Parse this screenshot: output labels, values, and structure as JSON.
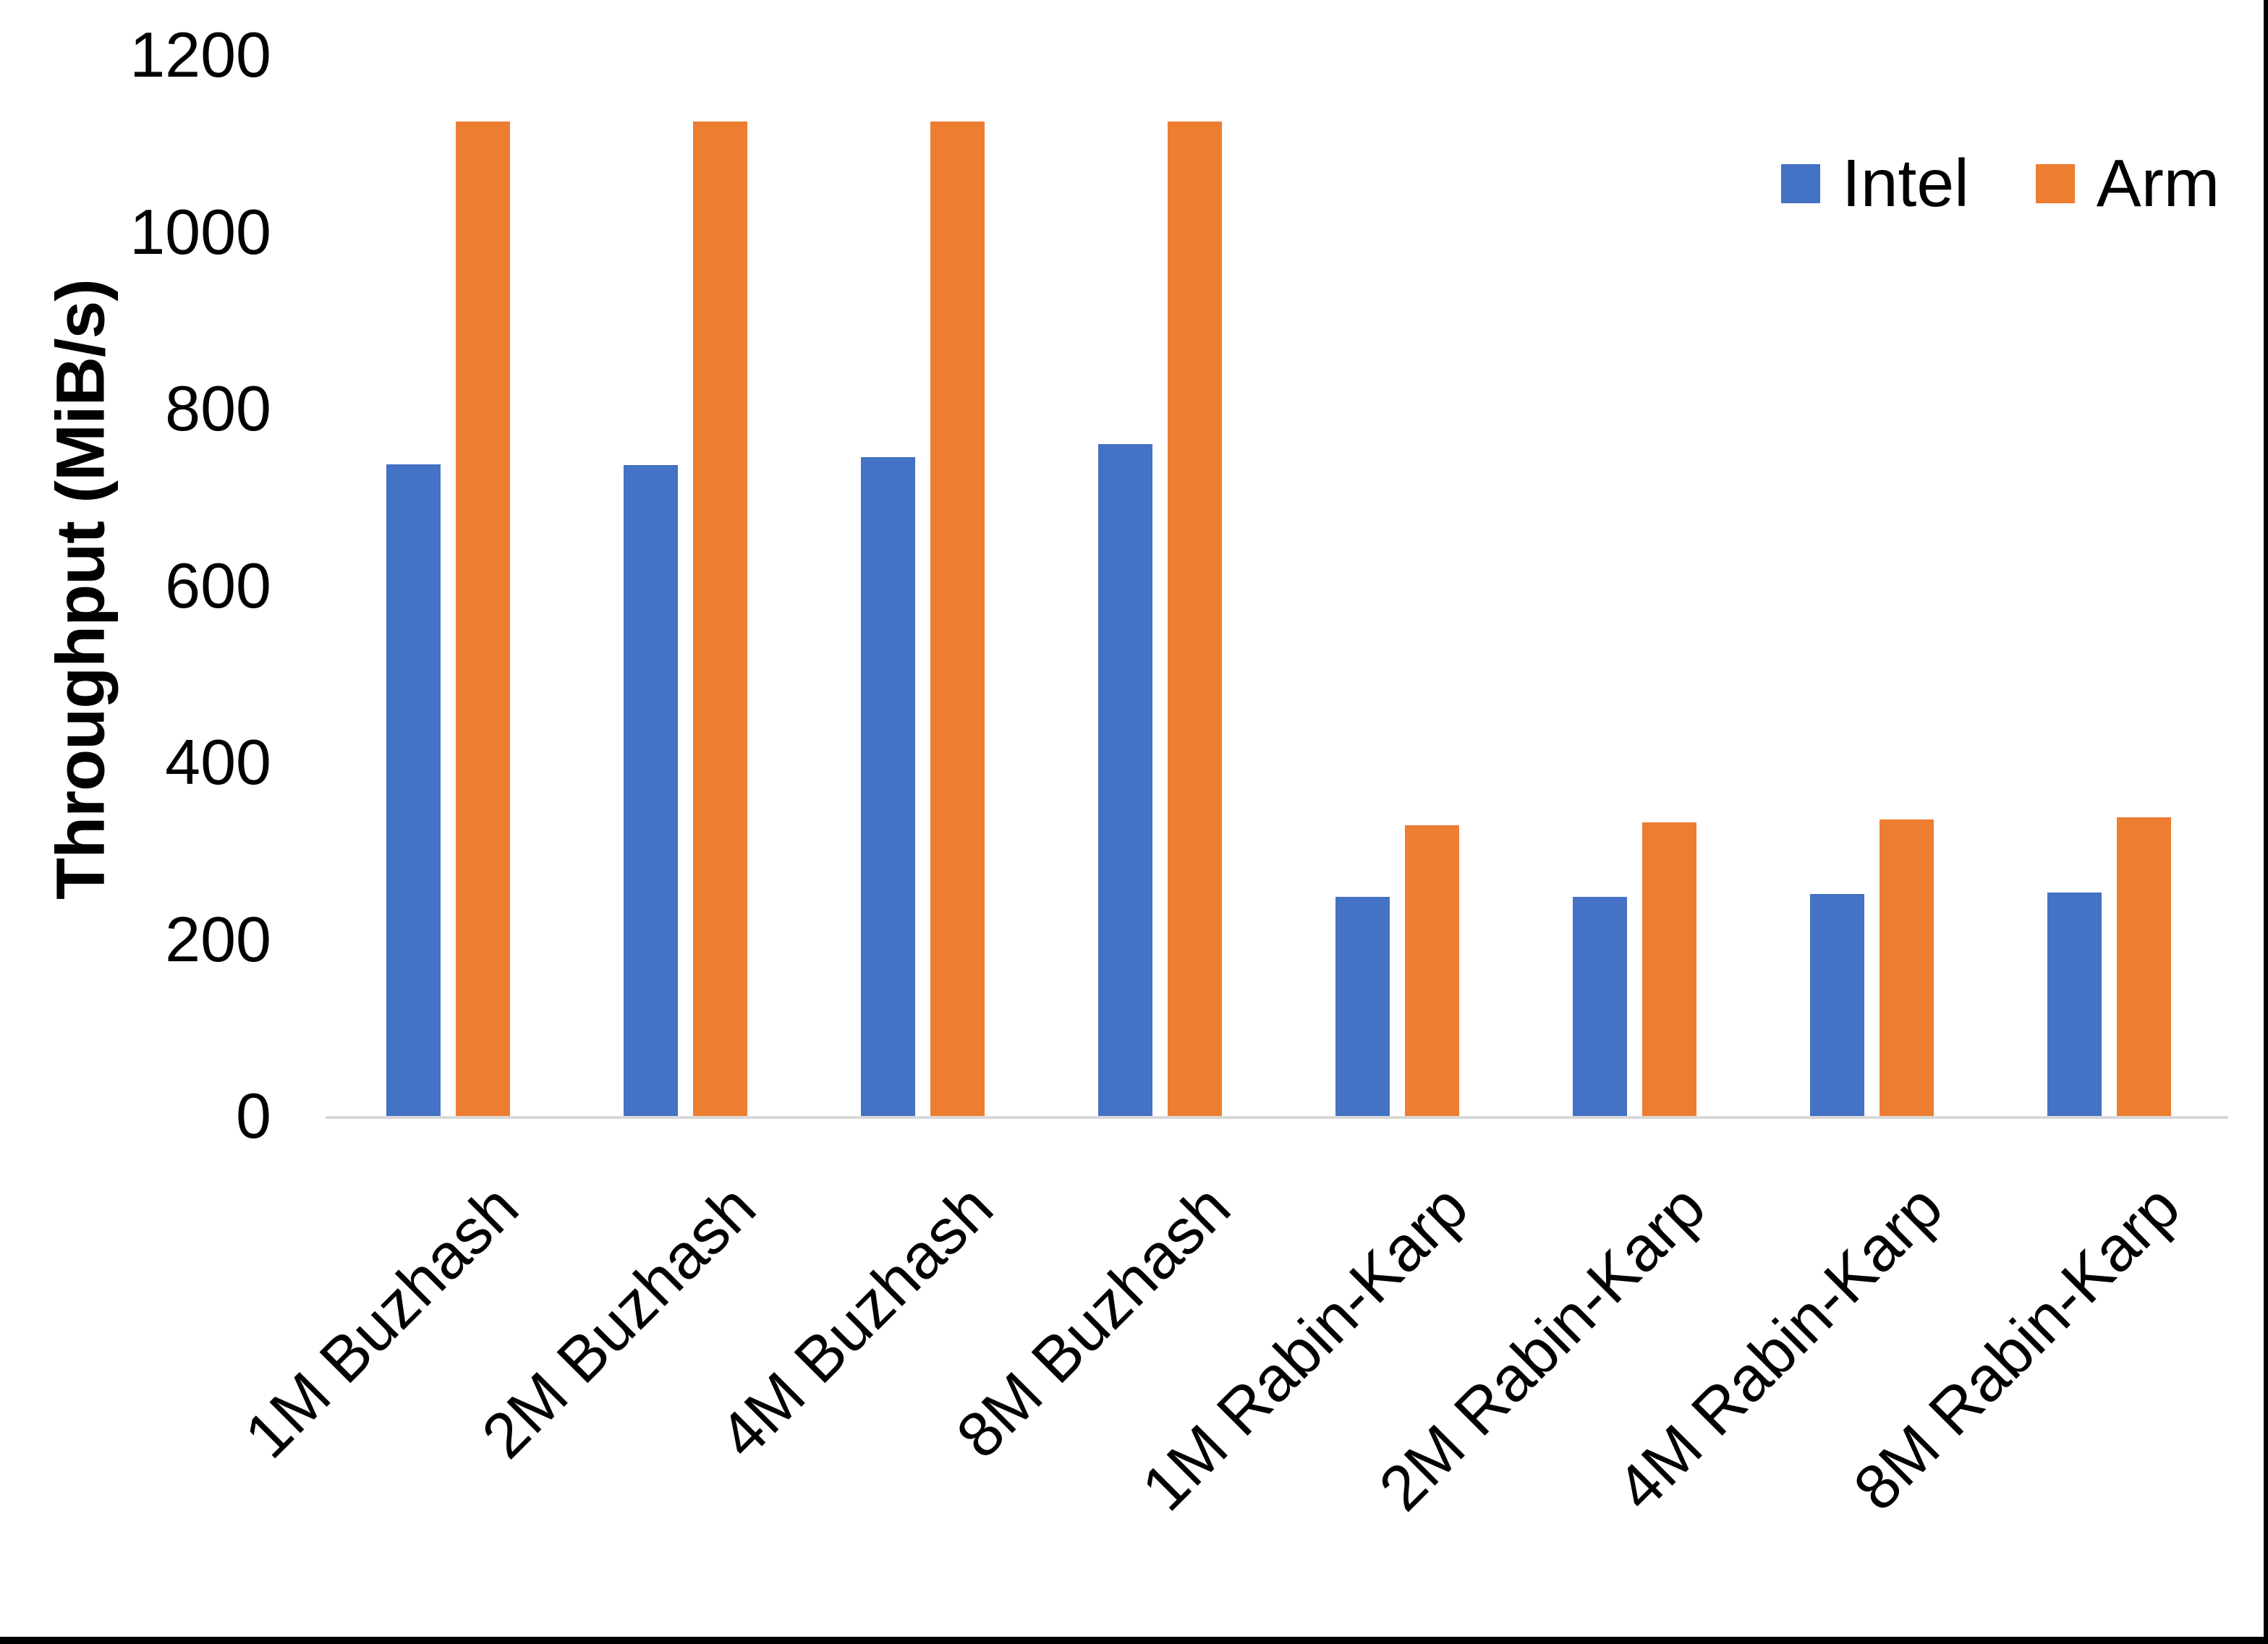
{
  "figure": {
    "background": "#ffffff",
    "frame_color": "#000000"
  },
  "chart_data": {
    "type": "bar",
    "title": "",
    "xlabel": "",
    "ylabel": "Throughput (MiB/s)",
    "ylim": [
      0,
      1200
    ],
    "yticks": [
      0,
      200,
      400,
      600,
      800,
      1000,
      1200
    ],
    "grid": false,
    "legend_position": "top-right",
    "axis_line_color": "#d9d9d9",
    "text_color": "#000000",
    "categories": [
      "1M Buzhash",
      "2M Buzhash",
      "4M Buzhash",
      "8M Buzhash",
      "1M Rabin-Karp",
      "2M Rabin-Karp",
      "4M Rabin-Karp",
      "8M Rabin-Karp"
    ],
    "series": [
      {
        "name": "Intel",
        "color": "#4472C4",
        "values": [
          737,
          736,
          745,
          760,
          248,
          248,
          251,
          253
        ]
      },
      {
        "name": "Arm",
        "color": "#ED7D31",
        "values": [
          1125,
          1125,
          1125,
          1125,
          329,
          332,
          335,
          338
        ]
      }
    ]
  }
}
